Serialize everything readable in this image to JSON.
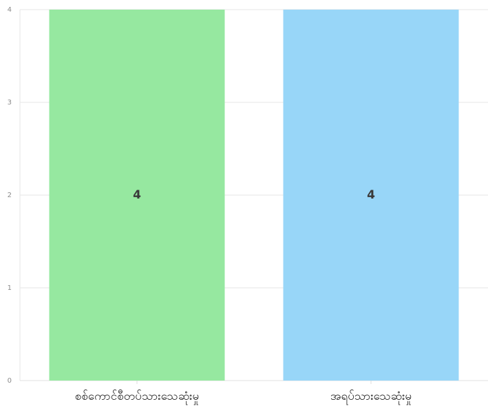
{
  "chart_data": {
    "type": "bar",
    "categories": [
      "စစ်ကောင်စီတပ်သားသေဆုံးမှု",
      "အရပ်သားသေဆုံးမှု"
    ],
    "values": [
      4,
      4
    ],
    "data_labels": [
      "4",
      "4"
    ],
    "bar_colors": [
      "#96e8a0",
      "#98d6f8"
    ],
    "ylim": [
      0,
      4
    ],
    "yticks": [
      "0",
      "1",
      "2",
      "3",
      "4"
    ],
    "grid": true,
    "legend": "none",
    "title": "",
    "xlabel": "",
    "ylabel": ""
  }
}
